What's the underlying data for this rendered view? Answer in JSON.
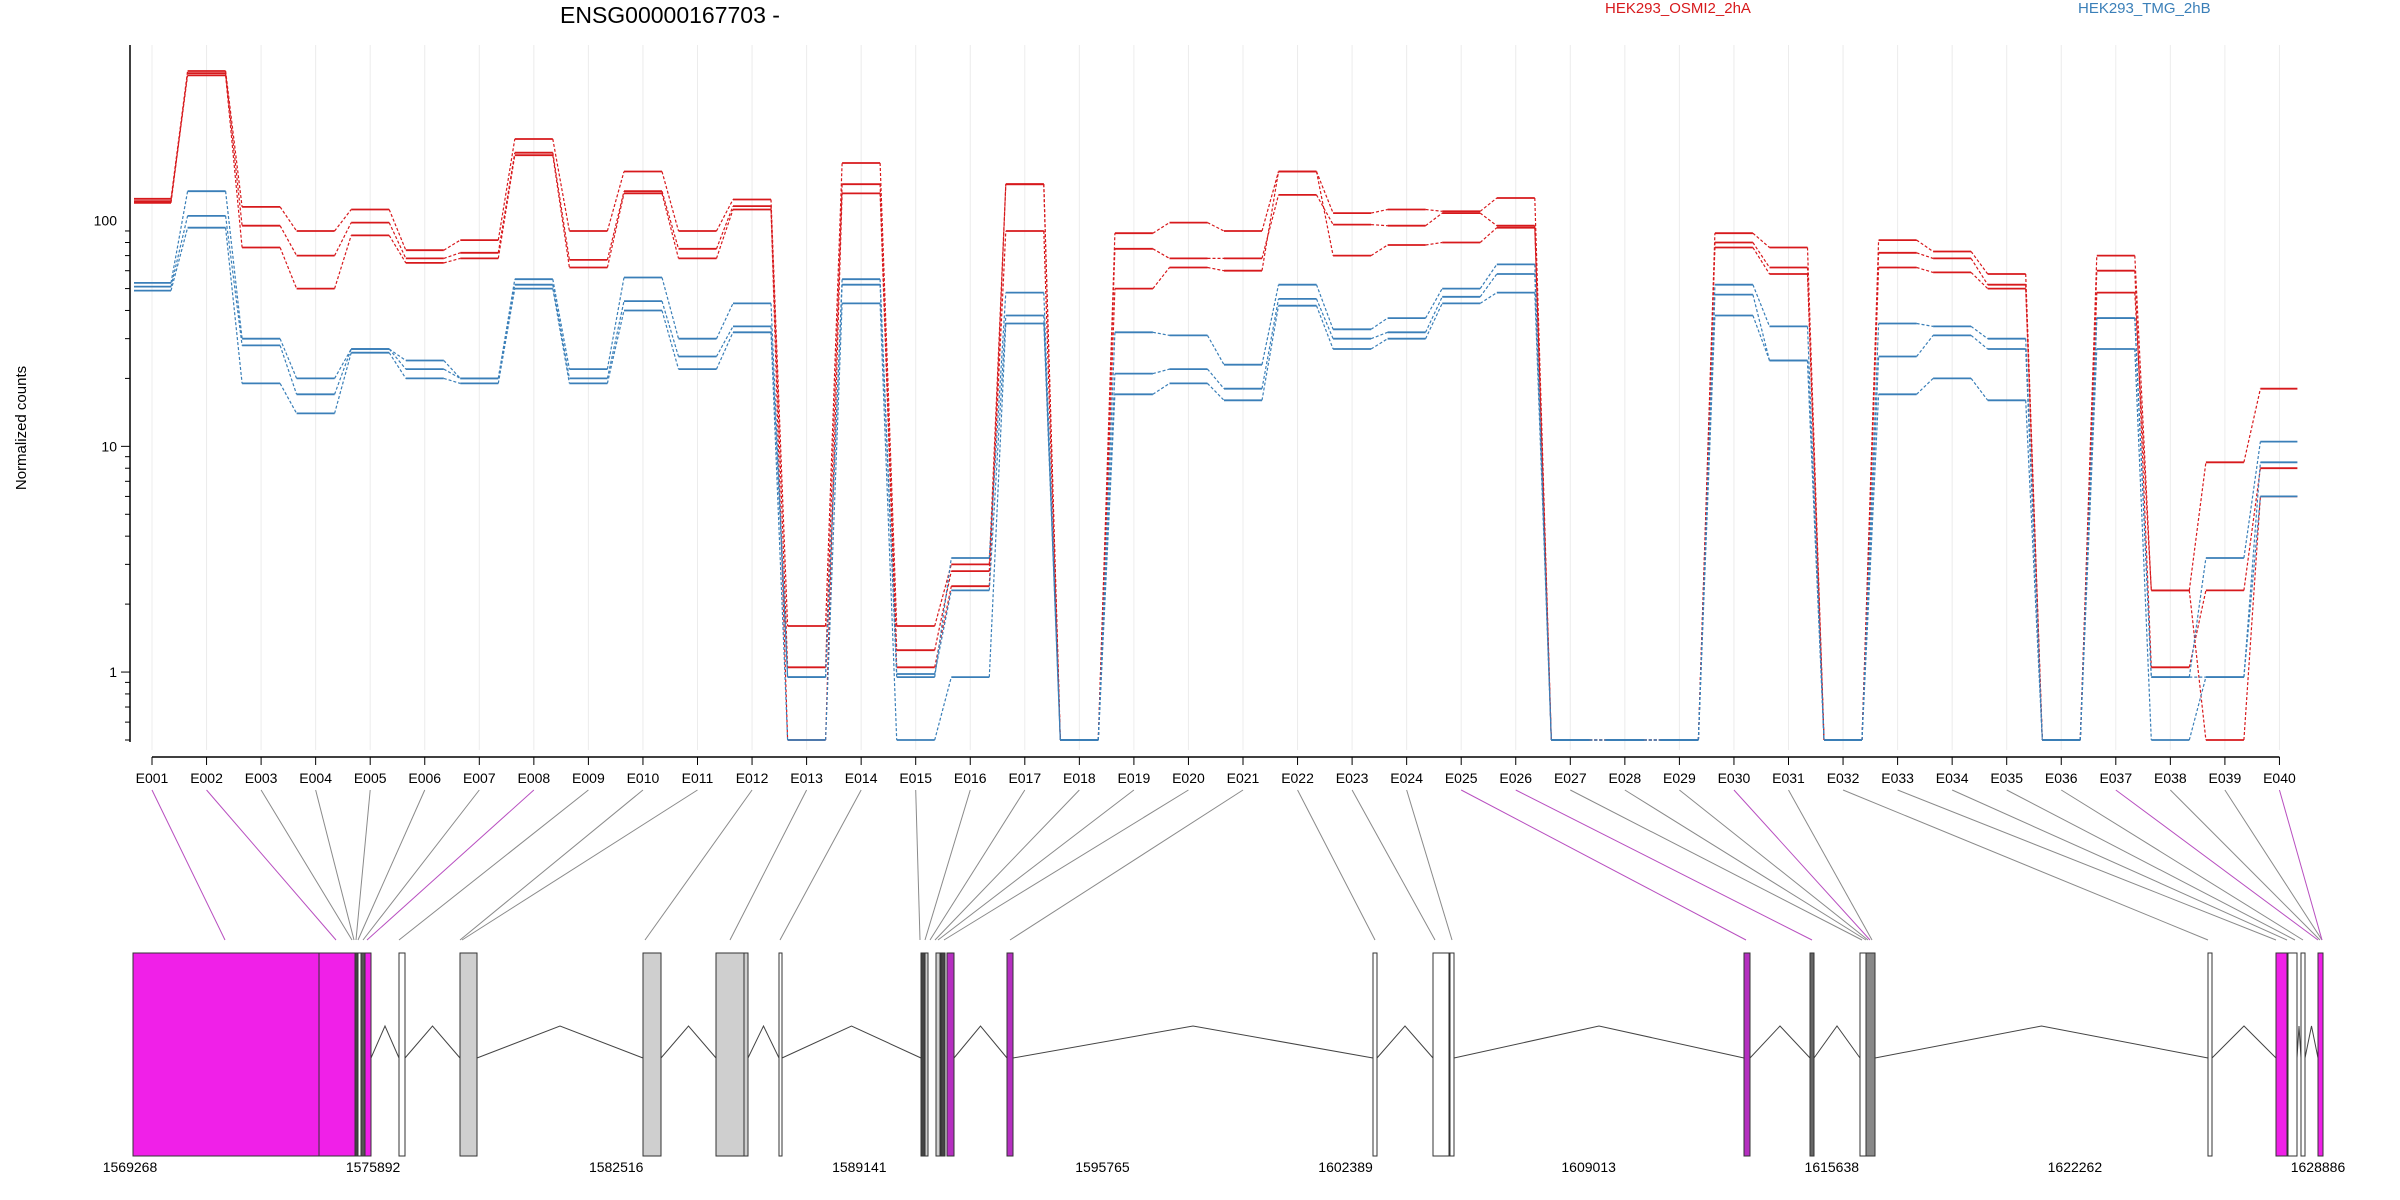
{
  "chart_data": {
    "type": "line",
    "title": "ENSG00000167703 -",
    "ylabel": "Normalized counts",
    "yscale": "log",
    "y_ticks": [
      1,
      10,
      100
    ],
    "y_tick_labels": [
      "1",
      "10",
      "100"
    ],
    "ylim": [
      0.5,
      600
    ],
    "exon_ids": [
      "E001",
      "E002",
      "E003",
      "E004",
      "E005",
      "E006",
      "E007",
      "E008",
      "E009",
      "E010",
      "E011",
      "E012",
      "E013",
      "E014",
      "E015",
      "E016",
      "E017",
      "E018",
      "E019",
      "E020",
      "E021",
      "E022",
      "E023",
      "E024",
      "E025",
      "E026",
      "E027",
      "E028",
      "E029",
      "E030",
      "E031",
      "E032",
      "E033",
      "E034",
      "E035",
      "E036",
      "E037",
      "E038",
      "E039",
      "E040"
    ],
    "legend": [
      {
        "label": "HEK293_OSMI2_2hA",
        "color": "#d7191c"
      },
      {
        "label": "HEK293_TMG_2hB",
        "color": "#3a7fb8"
      }
    ],
    "series": [
      {
        "group": "HEK293_OSMI2_2hA",
        "values": [
          125,
          460,
          115,
          90,
          112,
          74,
          82,
          230,
          90,
          165,
          90,
          124,
          1.6,
          180,
          1.6,
          3.0,
          145,
          0.5,
          88,
          98,
          90,
          165,
          108,
          112,
          110,
          126,
          0.5,
          0.5,
          0.5,
          88,
          76,
          0.5,
          82,
          73,
          58,
          0.5,
          70,
          2.3,
          8.5,
          18
        ]
      },
      {
        "group": "HEK293_OSMI2_2hA",
        "values": [
          120,
          450,
          95,
          70,
          98,
          68,
          72,
          200,
          67,
          135,
          75,
          116,
          1.05,
          145,
          1.25,
          2.8,
          90,
          0.5,
          75,
          68,
          68,
          130,
          96,
          95,
          108,
          95,
          0.5,
          0.5,
          0.5,
          80,
          62,
          0.5,
          72,
          68,
          52,
          0.5,
          60,
          1.05,
          2.3,
          8
        ]
      },
      {
        "group": "HEK293_OSMI2_2hA",
        "values": [
          122,
          440,
          76,
          50,
          86,
          65,
          68,
          195,
          62,
          132,
          68,
          112,
          0.5,
          132,
          1.05,
          2.4,
          145,
          0.5,
          50,
          62,
          60,
          165,
          70,
          78,
          80,
          93,
          0.5,
          0.5,
          0.5,
          76,
          58,
          0.5,
          62,
          59,
          50,
          0.5,
          48,
          2.3,
          0.5,
          6
        ]
      },
      {
        "group": "HEK293_TMG_2hB",
        "values": [
          53,
          135,
          30,
          20,
          27,
          24,
          20,
          55,
          22,
          56,
          30,
          43,
          0.95,
          55,
          0.95,
          3.2,
          48,
          0.5,
          32,
          31,
          23,
          52,
          33,
          37,
          50,
          64,
          0.5,
          0.5,
          0.5,
          52,
          34,
          0.5,
          35,
          34,
          30,
          0.5,
          37,
          0.95,
          3.2,
          10.5
        ]
      },
      {
        "group": "HEK293_TMG_2hB",
        "values": [
          51,
          105,
          28,
          17,
          27,
          22,
          20,
          52,
          20,
          44,
          25,
          34,
          0.95,
          52,
          0.98,
          2.3,
          38,
          0.5,
          21,
          22,
          18,
          45,
          30,
          32,
          46,
          58,
          0.5,
          0.5,
          0.5,
          47,
          24,
          0.5,
          25,
          31,
          27,
          0.5,
          37,
          0.95,
          0.95,
          8.5
        ]
      },
      {
        "group": "HEK293_TMG_2hB",
        "values": [
          49,
          93,
          19,
          14,
          26,
          20,
          19,
          50,
          19,
          40,
          22,
          32,
          0.5,
          43,
          0.5,
          0.95,
          35,
          0.5,
          17,
          19,
          16,
          42,
          27,
          30,
          43,
          48,
          0.5,
          0.5,
          0.5,
          38,
          24,
          0.5,
          17,
          20,
          16,
          0.5,
          27,
          0.5,
          0.95,
          6
        ]
      }
    ],
    "gene_model": {
      "coord_labels": [
        "1569268",
        "1575892",
        "1582516",
        "1589141",
        "1595765",
        "1602389",
        "1609013",
        "1615638",
        "1622262",
        "1628886"
      ],
      "coord_min": 1569268,
      "coord_max": 1628886
    }
  }
}
